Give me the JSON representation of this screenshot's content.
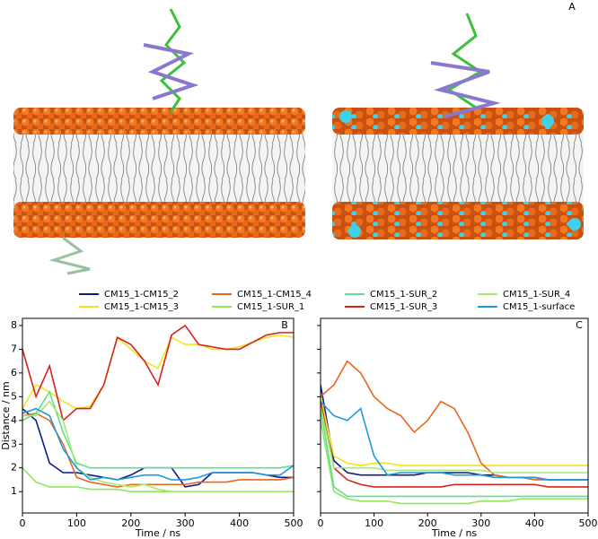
{
  "figure_label": "A",
  "chart_data": [
    {
      "type": "line",
      "panel_label": "B",
      "xlabel": "Time / ns",
      "ylabel": "Distance / nm",
      "xlim": [
        0,
        500
      ],
      "xticks": [
        0,
        100,
        200,
        300,
        400,
        500
      ],
      "ylim": [
        0.1,
        8.3
      ],
      "yticks": [
        1,
        2,
        3,
        4,
        5,
        6,
        7,
        8
      ],
      "show_ytick_labels": true,
      "x": [
        0,
        25,
        50,
        75,
        100,
        125,
        150,
        175,
        200,
        225,
        250,
        275,
        300,
        325,
        350,
        375,
        400,
        425,
        450,
        475,
        500
      ],
      "series": [
        {
          "name": "CM15_1-CM15_2",
          "color": "#0d1a8c",
          "values": [
            4.5,
            4.0,
            2.2,
            1.8,
            1.8,
            1.7,
            1.6,
            1.5,
            1.7,
            2.0,
            2.0,
            2.0,
            1.2,
            1.3,
            1.8,
            1.8,
            1.8,
            1.8,
            1.7,
            1.6,
            1.6
          ]
        },
        {
          "name": "CM15_1-CM15_3",
          "color": "#f2e41e",
          "values": [
            4.5,
            5.5,
            5.2,
            4.8,
            4.5,
            4.6,
            5.5,
            7.5,
            7.0,
            6.5,
            6.2,
            7.5,
            7.2,
            7.2,
            7.0,
            7.0,
            7.1,
            7.3,
            7.5,
            7.6,
            7.5
          ]
        },
        {
          "name": "CM15_1-CM15_4",
          "color": "#e8661c",
          "values": [
            4.2,
            4.3,
            4.0,
            3.0,
            1.6,
            1.4,
            1.3,
            1.2,
            1.3,
            1.3,
            1.3,
            1.3,
            1.3,
            1.4,
            1.4,
            1.4,
            1.5,
            1.5,
            1.5,
            1.5,
            1.6
          ]
        },
        {
          "name": "CM15_1-SUR_1",
          "color": "#8ee85c",
          "values": [
            2.0,
            1.4,
            1.2,
            1.2,
            1.2,
            1.1,
            1.1,
            1.1,
            1.0,
            1.0,
            1.0,
            1.0,
            1.0,
            1.0,
            1.0,
            1.0,
            1.0,
            1.0,
            1.0,
            1.0,
            1.0
          ]
        },
        {
          "name": "CM15_1-SUR_2",
          "color": "#5fe08e",
          "values": [
            4.0,
            4.3,
            5.2,
            3.5,
            2.2,
            2.0,
            2.0,
            2.0,
            2.0,
            2.0,
            2.0,
            2.0,
            2.0,
            2.0,
            2.0,
            2.0,
            2.0,
            2.0,
            2.0,
            2.0,
            2.1
          ]
        },
        {
          "name": "CM15_1-SUR_3",
          "color": "#d8201c",
          "values": [
            7.0,
            5.0,
            6.3,
            4.0,
            4.5,
            4.5,
            5.5,
            7.5,
            7.2,
            6.5,
            5.5,
            7.6,
            8.0,
            7.2,
            7.1,
            7.0,
            7.0,
            7.3,
            7.6,
            7.7,
            7.7
          ]
        },
        {
          "name": "CM15_1-SUR_4",
          "color": "#a8e870",
          "values": [
            4.2,
            4.2,
            4.8,
            4.0,
            2.0,
            1.6,
            1.4,
            1.3,
            1.2,
            1.3,
            1.1,
            1.0,
            1.0,
            1.0,
            1.0,
            1.0,
            1.0,
            1.0,
            1.0,
            1.0,
            1.0
          ]
        },
        {
          "name": "CM15_1-surface",
          "color": "#1e9be0",
          "values": [
            4.3,
            4.5,
            4.2,
            2.8,
            2.0,
            1.5,
            1.6,
            1.5,
            1.6,
            1.7,
            1.7,
            1.5,
            1.5,
            1.6,
            1.8,
            1.8,
            1.8,
            1.8,
            1.7,
            1.7,
            2.1
          ]
        }
      ]
    },
    {
      "type": "line",
      "panel_label": "C",
      "xlabel": "Time / ns",
      "xlim": [
        0,
        500
      ],
      "xticks": [
        0,
        100,
        200,
        300,
        400,
        500
      ],
      "ylim": [
        0.1,
        8.3
      ],
      "yticks": [
        1,
        2,
        3,
        4,
        5,
        6,
        7,
        8
      ],
      "show_ytick_labels": false,
      "x": [
        0,
        25,
        50,
        75,
        100,
        125,
        150,
        175,
        200,
        225,
        250,
        275,
        300,
        325,
        350,
        375,
        400,
        425,
        450,
        475,
        500
      ],
      "series": [
        {
          "color": "#0d1a8c",
          "values": [
            5.5,
            2.3,
            1.8,
            1.7,
            1.7,
            1.7,
            1.7,
            1.7,
            1.8,
            1.8,
            1.8,
            1.8,
            1.7,
            1.7,
            1.6,
            1.6,
            1.6,
            1.5,
            1.5,
            1.5,
            1.5
          ]
        },
        {
          "color": "#f2e41e",
          "values": [
            5.0,
            2.5,
            2.2,
            2.1,
            2.2,
            2.2,
            2.1,
            2.1,
            2.1,
            2.1,
            2.1,
            2.1,
            2.1,
            2.1,
            2.1,
            2.1,
            2.1,
            2.1,
            2.1,
            2.1,
            2.1
          ]
        },
        {
          "color": "#e8661c",
          "values": [
            5.0,
            5.5,
            6.5,
            6.0,
            5.0,
            4.5,
            4.2,
            3.5,
            4.0,
            4.8,
            4.5,
            3.5,
            2.2,
            1.7,
            1.6,
            1.6,
            1.5,
            1.5,
            1.5,
            1.5,
            1.5
          ]
        },
        {
          "color": "#8ee85c",
          "values": [
            4.0,
            1.0,
            0.7,
            0.6,
            0.6,
            0.6,
            0.5,
            0.5,
            0.5,
            0.5,
            0.5,
            0.5,
            0.6,
            0.6,
            0.6,
            0.7,
            0.7,
            0.7,
            0.7,
            0.7,
            0.7
          ]
        },
        {
          "color": "#5fe08e",
          "values": [
            4.5,
            1.2,
            0.8,
            0.8,
            0.8,
            0.8,
            0.8,
            0.8,
            0.8,
            0.8,
            0.8,
            0.8,
            0.8,
            0.8,
            0.8,
            0.8,
            0.8,
            0.8,
            0.8,
            0.8,
            0.8
          ]
        },
        {
          "color": "#d8201c",
          "values": [
            4.8,
            2.0,
            1.5,
            1.3,
            1.2,
            1.2,
            1.2,
            1.2,
            1.2,
            1.2,
            1.3,
            1.3,
            1.3,
            1.3,
            1.3,
            1.3,
            1.3,
            1.2,
            1.2,
            1.2,
            1.2
          ]
        },
        {
          "color": "#a8e870",
          "values": [
            4.6,
            2.0,
            2.0,
            2.0,
            2.0,
            1.9,
            1.9,
            1.9,
            1.9,
            1.9,
            1.9,
            1.9,
            1.9,
            1.8,
            1.8,
            1.8,
            1.8,
            1.8,
            1.8,
            1.8,
            1.8
          ]
        },
        {
          "color": "#1e9be0",
          "values": [
            4.8,
            4.2,
            4.0,
            4.5,
            2.5,
            1.7,
            1.8,
            1.8,
            1.8,
            1.8,
            1.7,
            1.7,
            1.7,
            1.6,
            1.6,
            1.6,
            1.6,
            1.5,
            1.5,
            1.5,
            1.5
          ]
        }
      ]
    }
  ]
}
